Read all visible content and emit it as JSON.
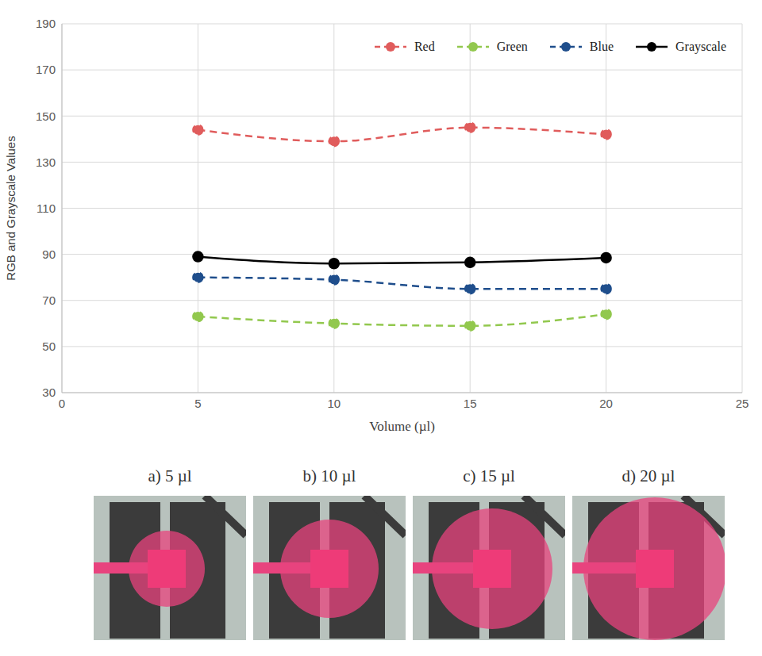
{
  "chart_data": {
    "type": "line",
    "x": [
      5,
      10,
      15,
      20
    ],
    "x_label": "Volume (µl)",
    "y_label": "RGB and Grayscale Values",
    "xlim": [
      0,
      25
    ],
    "xticks": [
      0,
      5,
      10,
      15,
      20,
      25
    ],
    "ylim": [
      30,
      190
    ],
    "yticks": [
      30,
      50,
      70,
      90,
      110,
      130,
      150,
      170,
      190
    ],
    "grid": true,
    "legend": "top-right",
    "series": [
      {
        "name": "Red",
        "color": "#e05c5c",
        "values": [
          144,
          139,
          145,
          142
        ],
        "line_style": "dashed",
        "marker": "circle"
      },
      {
        "name": "Green",
        "color": "#92c84e",
        "values": [
          63,
          60,
          59,
          64
        ],
        "line_style": "dashed",
        "marker": "circle"
      },
      {
        "name": "Blue",
        "color": "#1f4e8c",
        "values": [
          80,
          79,
          75,
          75
        ],
        "line_style": "dashed",
        "marker": "circle"
      },
      {
        "name": "Grayscale",
        "color": "#000000",
        "values": [
          89,
          86,
          86.5,
          88.5
        ],
        "line_style": "solid",
        "marker": "circle"
      }
    ]
  },
  "panels": [
    {
      "caption": "a) 5 µl"
    },
    {
      "caption": "b) 10 µl"
    },
    {
      "caption": "c) 15 µl"
    },
    {
      "caption": "d) 20 µl"
    }
  ]
}
